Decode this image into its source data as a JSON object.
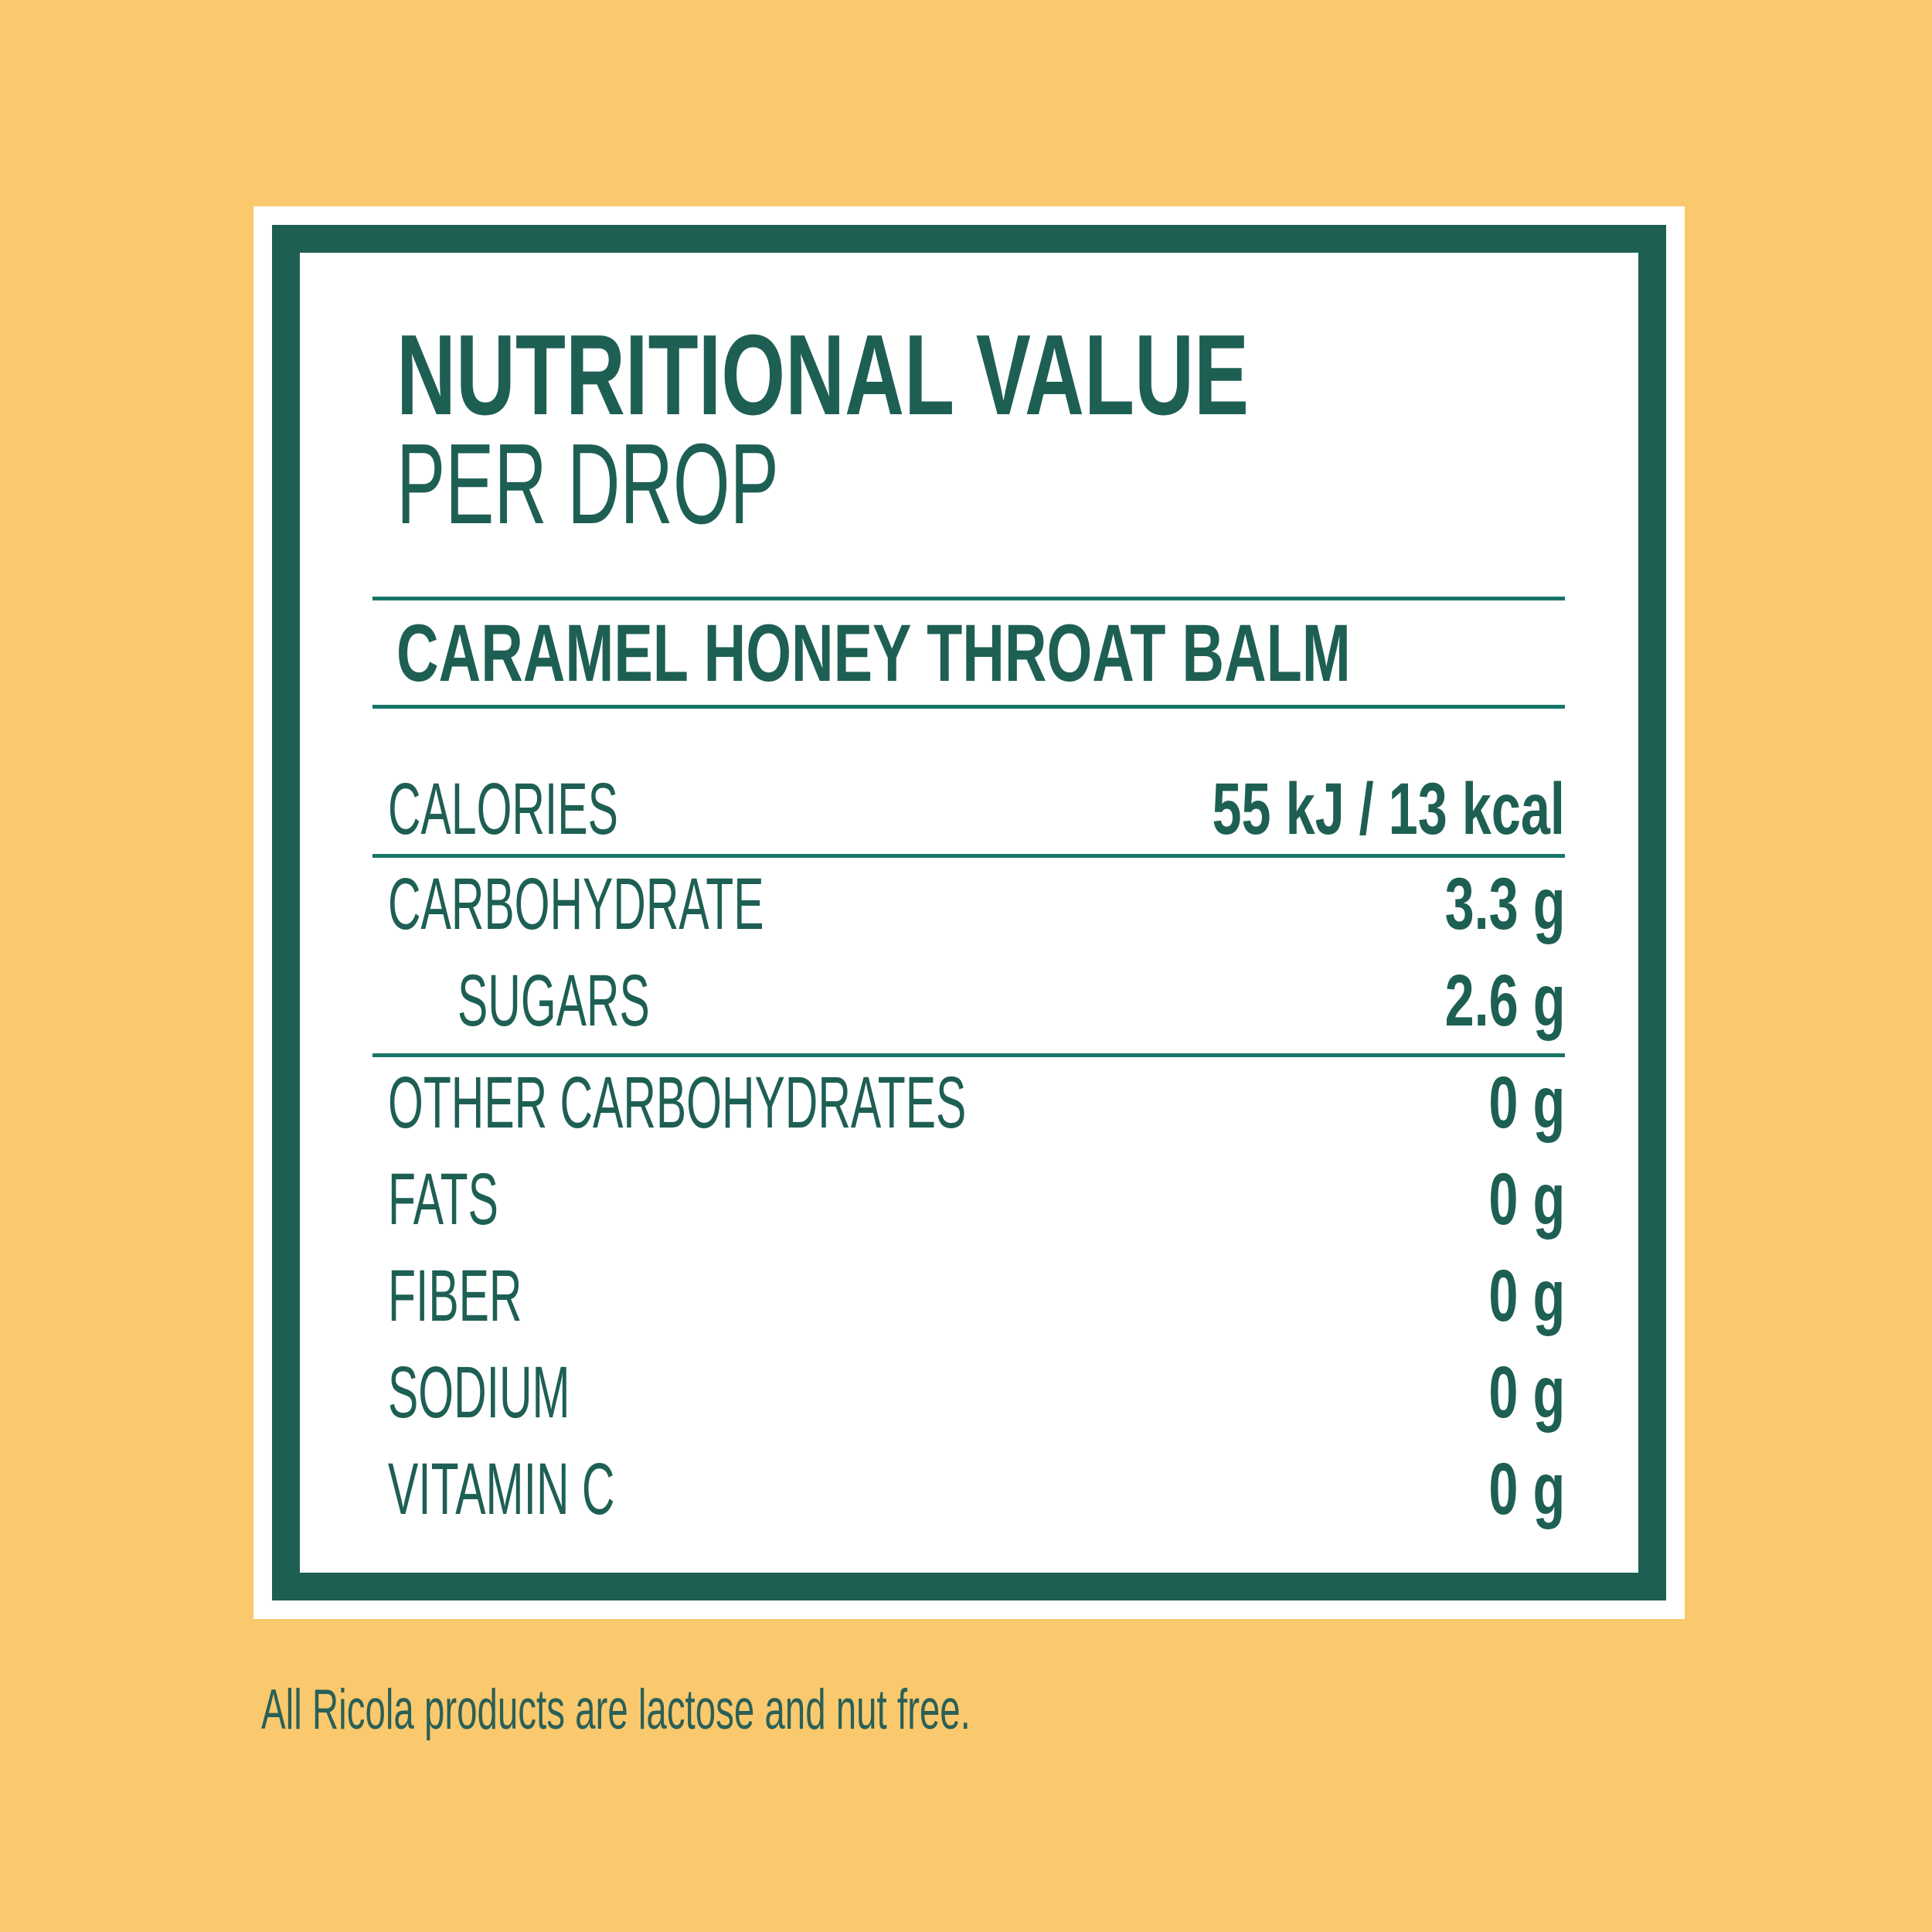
{
  "colors": {
    "background_yellow": "#FAC96D",
    "teal_dark": "#1E5F54",
    "teal_divider": "#177568",
    "card_white": "#FFFFFF"
  },
  "header": {
    "title": "NUTRITIONAL VALUE",
    "subtitle": "PER DROP"
  },
  "product": {
    "name": "CARAMEL HONEY THROAT BALM"
  },
  "nutrition_table": {
    "rows": [
      {
        "label": "CALORIES",
        "value": "55 kJ / 13 kcal"
      },
      {
        "label": "CARBOHYDRATE",
        "value": "3.3 g"
      },
      {
        "label": "SUGARS",
        "value": "2.6 g"
      },
      {
        "label": "OTHER CARBOHYDRATES",
        "value": "0 g"
      },
      {
        "label": "FATS",
        "value": "0 g"
      },
      {
        "label": "FIBER",
        "value": "0 g"
      },
      {
        "label": "SODIUM",
        "value": "0 g"
      },
      {
        "label": "VITAMIN C",
        "value": "0 g"
      }
    ]
  },
  "footer": {
    "note": "All Ricola products are lactose and nut free."
  }
}
